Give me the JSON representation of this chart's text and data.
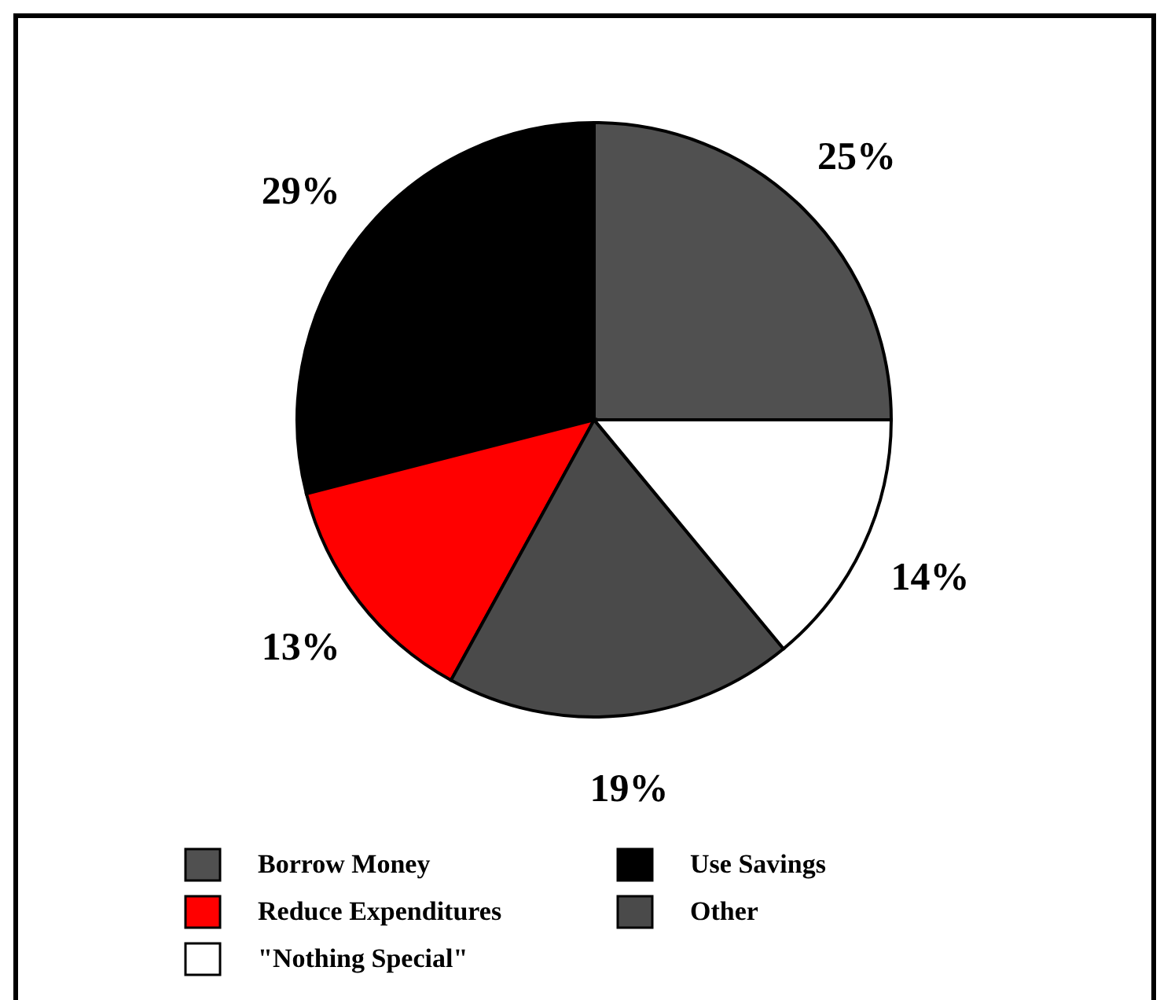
{
  "chart_data": {
    "type": "pie",
    "categories": [
      "Borrow Money",
      "Use Savings",
      "Reduce Expenditures",
      "Other",
      "\"Nothing Special\""
    ],
    "values": [
      25,
      29,
      13,
      19,
      14
    ],
    "colors": [
      "#505050",
      "#000000",
      "#ff0000",
      "#4a4a4a",
      "#ffffff"
    ],
    "value_labels": [
      "25%",
      "29%",
      "13%",
      "19%",
      "14%"
    ],
    "legend": "bottom"
  }
}
